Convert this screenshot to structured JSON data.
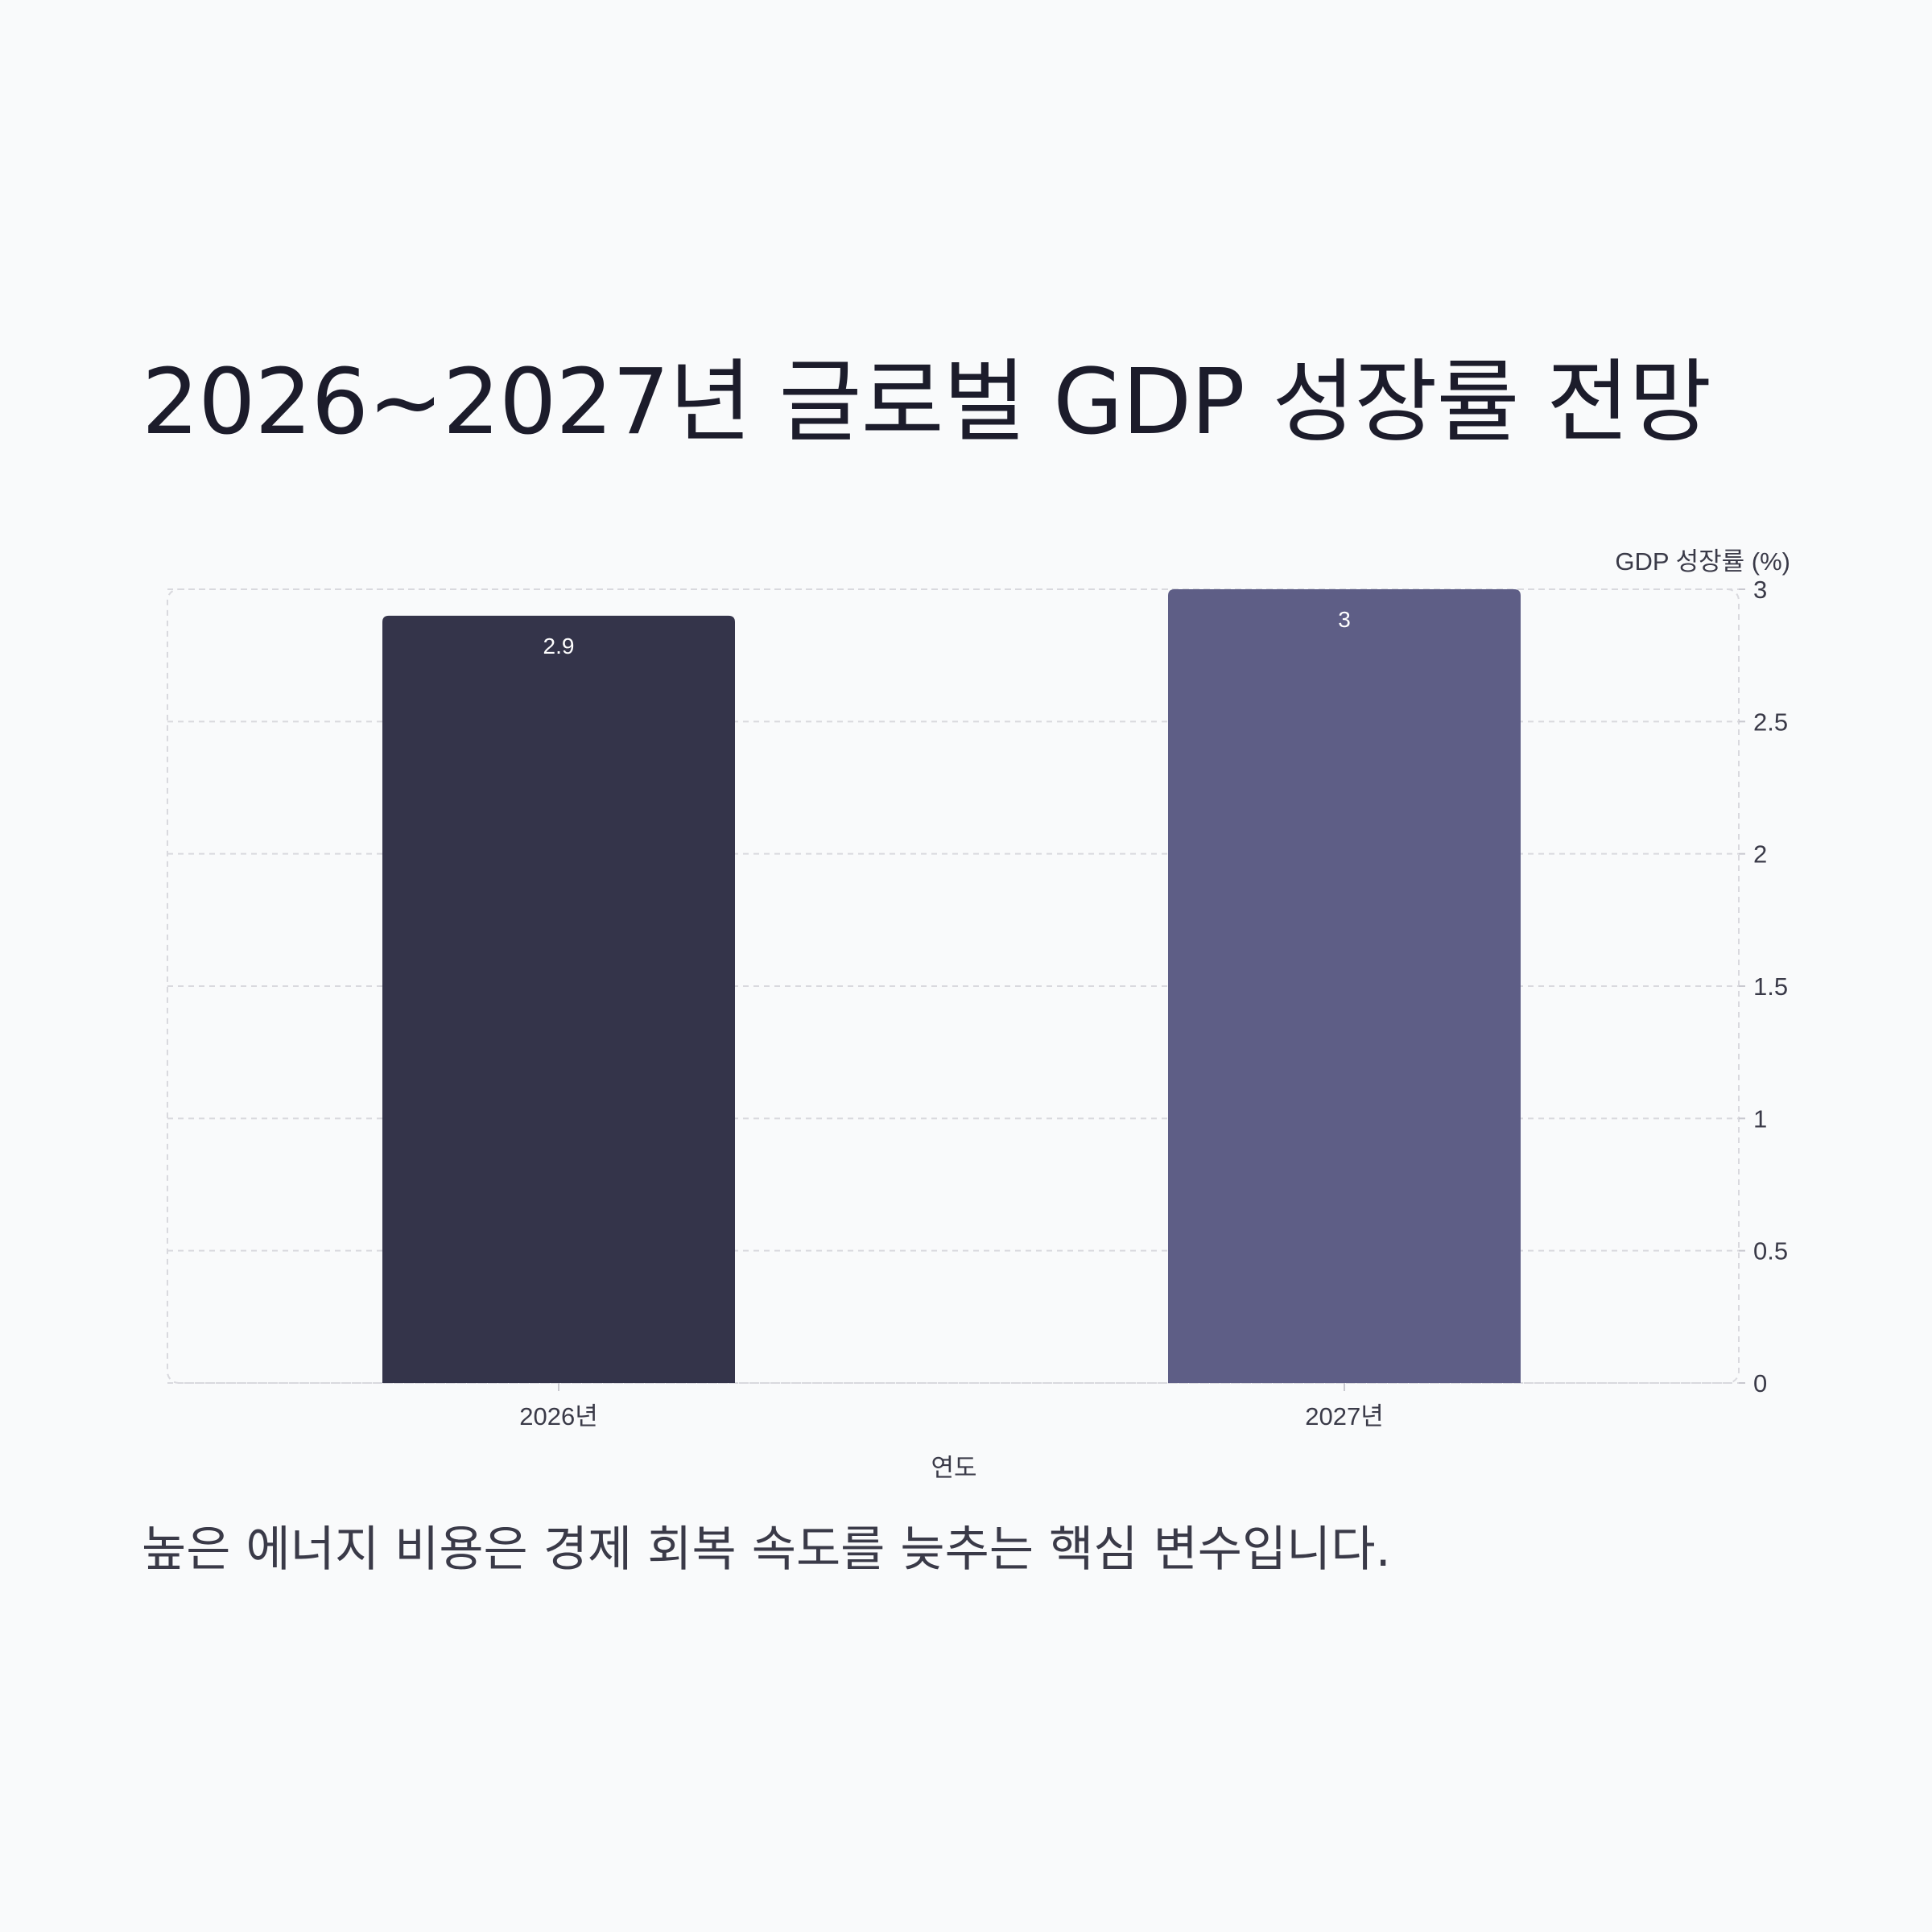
{
  "page": {
    "title": "2026~2027년 글로벌 GDP 성장률 전망",
    "caption": "높은 에너지 비용은 경제 회복 속도를 늦추는 핵심 변수입니다."
  },
  "chart_data": {
    "type": "bar",
    "categories": [
      "2026년",
      "2027년"
    ],
    "values": [
      2.9,
      3
    ],
    "value_labels": [
      "2.9",
      "3"
    ],
    "xlabel": "연도",
    "ylabel": "GDP 성장률 (%)",
    "ylim": [
      0,
      3
    ],
    "yticks": [
      0,
      0.5,
      1,
      1.5,
      2,
      2.5,
      3
    ],
    "ytick_labels": [
      "0",
      "0.5",
      "1",
      "1.5",
      "2",
      "2.5",
      "3"
    ],
    "y_axis_side": "right",
    "grid": true,
    "bar_colors": [
      "#34344a",
      "#5e5e86"
    ],
    "label_color": "#ffffff",
    "grid_color": "#d9d9de",
    "text_color": "#3a3a48"
  }
}
